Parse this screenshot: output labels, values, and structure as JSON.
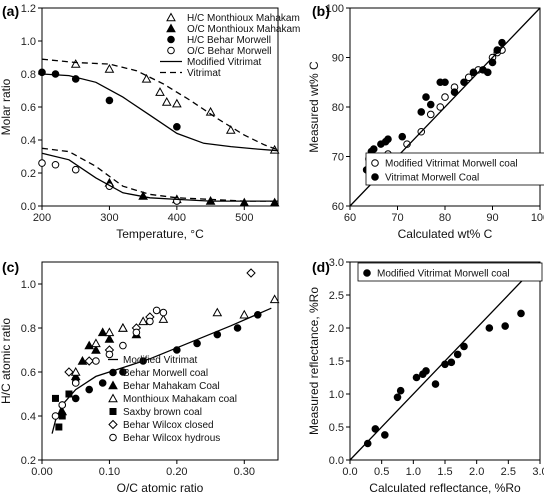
{
  "chart_data": [
    {
      "panel": "(a)",
      "type": "scatter",
      "xlabel": "Temperature, °C",
      "ylabel": "Molar ratio",
      "xlim": [
        200,
        550
      ],
      "ylim": [
        0,
        1.2
      ],
      "xticks": [
        "200",
        "300",
        "400",
        "500"
      ],
      "xtick_values": [
        200,
        300,
        400,
        500
      ],
      "yticks": [
        "0.0",
        "0.2",
        "0.4",
        "0.6",
        "0.8",
        "1.0",
        "1.2"
      ],
      "ytick_values": [
        0,
        0.2,
        0.4,
        0.6,
        0.8,
        1.0,
        1.2
      ],
      "legend_position": "top-right",
      "series": [
        {
          "name": "H/C Monthioux Mahakam",
          "marker": "open-triangle",
          "points": [
            [
              250,
              0.86
            ],
            [
              300,
              0.83
            ],
            [
              355,
              0.77
            ],
            [
              375,
              0.69
            ],
            [
              385,
              0.63
            ],
            [
              400,
              0.62
            ],
            [
              450,
              0.57
            ],
            [
              480,
              0.46
            ],
            [
              545,
              0.34
            ]
          ]
        },
        {
          "name": "O/C Monthioux Mahakam",
          "marker": "filled-triangle",
          "points": [
            [
              300,
              0.14
            ],
            [
              350,
              0.06
            ],
            [
              400,
              0.04
            ],
            [
              450,
              0.03
            ],
            [
              500,
              0.02
            ],
            [
              545,
              0.02
            ]
          ]
        },
        {
          "name": "H/C Behar Morwell",
          "marker": "filled-circle",
          "points": [
            [
              200,
              0.81
            ],
            [
              220,
              0.8
            ],
            [
              250,
              0.77
            ],
            [
              300,
              0.64
            ],
            [
              400,
              0.48
            ]
          ]
        },
        {
          "name": "O/C Behar Morwell",
          "marker": "open-circle",
          "points": [
            [
              200,
              0.26
            ],
            [
              220,
              0.25
            ],
            [
              250,
              0.22
            ],
            [
              300,
              0.12
            ],
            [
              400,
              0.03
            ]
          ]
        },
        {
          "name": "Modified Vitrimat",
          "line": "solid",
          "curves": [
            [
              [
                200,
                0.8
              ],
              [
                240,
                0.79
              ],
              [
                280,
                0.75
              ],
              [
                320,
                0.66
              ],
              [
                360,
                0.55
              ],
              [
                400,
                0.44
              ],
              [
                440,
                0.38
              ],
              [
                480,
                0.36
              ],
              [
                520,
                0.345
              ],
              [
                550,
                0.335
              ]
            ],
            [
              [
                200,
                0.32
              ],
              [
                240,
                0.28
              ],
              [
                280,
                0.17
              ],
              [
                320,
                0.08
              ],
              [
                360,
                0.05
              ],
              [
                400,
                0.04
              ],
              [
                450,
                0.03
              ],
              [
                500,
                0.03
              ],
              [
                550,
                0.03
              ]
            ]
          ]
        },
        {
          "name": "Vitrimat",
          "line": "dashed",
          "curves": [
            [
              [
                200,
                0.89
              ],
              [
                250,
                0.87
              ],
              [
                300,
                0.86
              ],
              [
                340,
                0.82
              ],
              [
                380,
                0.74
              ],
              [
                420,
                0.64
              ],
              [
                460,
                0.53
              ],
              [
                500,
                0.43
              ],
              [
                530,
                0.37
              ],
              [
                550,
                0.34
              ]
            ],
            [
              [
                200,
                0.35
              ],
              [
                240,
                0.33
              ],
              [
                280,
                0.24
              ],
              [
                320,
                0.12
              ],
              [
                360,
                0.07
              ],
              [
                400,
                0.05
              ],
              [
                450,
                0.04
              ],
              [
                500,
                0.03
              ],
              [
                550,
                0.03
              ]
            ]
          ]
        }
      ]
    },
    {
      "panel": "(b)",
      "type": "scatter",
      "xlabel": "Calculated wt% C",
      "ylabel": "Measured wt% C",
      "xlim": [
        60,
        100
      ],
      "ylim": [
        60,
        100
      ],
      "xticks": [
        "60",
        "70",
        "80",
        "90",
        "100"
      ],
      "xtick_values": [
        60,
        70,
        80,
        90,
        100
      ],
      "yticks": [
        "60",
        "70",
        "80",
        "90",
        "100"
      ],
      "ytick_values": [
        60,
        70,
        80,
        90,
        100
      ],
      "legend_position": "bottom-right",
      "series": [
        {
          "name": "Modified Vitrimat Morwell coal",
          "marker": "open-circle",
          "points": [
            [
              64,
              67.5
            ],
            [
              64.5,
              68.5
            ],
            [
              66,
              70
            ],
            [
              68,
              70.5
            ],
            [
              72,
              72.5
            ],
            [
              75,
              75
            ],
            [
              77,
              78.5
            ],
            [
              79,
              80
            ],
            [
              80,
              82
            ],
            [
              82,
              84
            ],
            [
              85,
              86
            ],
            [
              87,
              87.5
            ],
            [
              90,
              90
            ],
            [
              91,
              91
            ],
            [
              92,
              91.5
            ]
          ]
        },
        {
          "name": "Vitrimat Morwell Coal",
          "marker": "filled-circle",
          "points": [
            [
              63.5,
              67.3
            ],
            [
              64,
              69.5
            ],
            [
              64.5,
              71
            ],
            [
              65,
              71.5
            ],
            [
              66.5,
              72.5
            ],
            [
              67.5,
              73
            ],
            [
              68,
              73.5
            ],
            [
              71,
              74
            ],
            [
              75,
              79
            ],
            [
              76,
              82
            ],
            [
              77,
              80.5
            ],
            [
              79,
              85
            ],
            [
              80,
              85
            ],
            [
              82,
              83
            ],
            [
              84,
              85
            ],
            [
              86,
              87
            ],
            [
              88,
              87.5
            ],
            [
              89,
              87
            ],
            [
              90,
              89
            ],
            [
              91,
              91.5
            ],
            [
              92,
              93
            ]
          ]
        },
        {
          "name": "1:1",
          "line": "solid",
          "points": [
            [
              60,
              60
            ],
            [
              100,
              100
            ]
          ]
        }
      ]
    },
    {
      "panel": "(c)",
      "type": "scatter",
      "xlabel": "O/C atomic ratio",
      "ylabel": "H/C atomic ratio",
      "xlim": [
        0,
        0.35
      ],
      "ylim": [
        0.2,
        1.1
      ],
      "xticks": [
        "0.00",
        "0.10",
        "0.20",
        "0.30"
      ],
      "xtick_values": [
        0,
        0.1,
        0.2,
        0.3
      ],
      "yticks": [
        "0.2",
        "0.4",
        "0.6",
        "0.8",
        "1.0"
      ],
      "ytick_values": [
        0.2,
        0.4,
        0.6,
        0.8,
        1.0
      ],
      "legend_position": "bottom-right",
      "series": [
        {
          "name": "Modified Vitrimat",
          "line": "solid",
          "points": [
            [
              0.015,
              0.32
            ],
            [
              0.02,
              0.38
            ],
            [
              0.03,
              0.45
            ],
            [
              0.05,
              0.52
            ],
            [
              0.08,
              0.58
            ],
            [
              0.12,
              0.62
            ],
            [
              0.16,
              0.66
            ],
            [
              0.2,
              0.71
            ],
            [
              0.24,
              0.76
            ],
            [
              0.28,
              0.81
            ],
            [
              0.31,
              0.85
            ],
            [
              0.34,
              0.89
            ]
          ]
        },
        {
          "name": "Behar Morwell coal",
          "marker": "filled-circle",
          "points": [
            [
              0.03,
              0.45
            ],
            [
              0.05,
              0.48
            ],
            [
              0.07,
              0.52
            ],
            [
              0.09,
              0.55
            ],
            [
              0.12,
              0.6
            ],
            [
              0.15,
              0.65
            ],
            [
              0.2,
              0.7
            ],
            [
              0.23,
              0.73
            ],
            [
              0.26,
              0.77
            ],
            [
              0.29,
              0.8
            ],
            [
              0.32,
              0.86
            ]
          ]
        },
        {
          "name": "Behar Mahakam Coal",
          "marker": "filled-triangle",
          "points": [
            [
              0.03,
              0.42
            ],
            [
              0.05,
              0.58
            ],
            [
              0.06,
              0.65
            ],
            [
              0.07,
              0.72
            ],
            [
              0.08,
              0.7
            ],
            [
              0.09,
              0.78
            ],
            [
              0.1,
              0.75
            ],
            [
              0.12,
              0.8
            ],
            [
              0.14,
              0.77
            ]
          ]
        },
        {
          "name": "Monthioux Mahakam coal",
          "marker": "open-triangle",
          "points": [
            [
              0.05,
              0.6
            ],
            [
              0.08,
              0.73
            ],
            [
              0.1,
              0.78
            ],
            [
              0.12,
              0.8
            ],
            [
              0.15,
              0.83
            ],
            [
              0.18,
              0.84
            ],
            [
              0.26,
              0.87
            ],
            [
              0.3,
              0.86
            ],
            [
              0.345,
              0.93
            ]
          ]
        },
        {
          "name": "Saxby brown coal",
          "marker": "filled-square",
          "points": [
            [
              0.02,
              0.48
            ],
            [
              0.025,
              0.35
            ],
            [
              0.03,
              0.4
            ],
            [
              0.04,
              0.5
            ],
            [
              0.05,
              0.56
            ]
          ]
        },
        {
          "name": "Behar Wilcox closed",
          "marker": "open-diamond",
          "points": [
            [
              0.04,
              0.6
            ],
            [
              0.07,
              0.65
            ],
            [
              0.1,
              0.7
            ],
            [
              0.14,
              0.8
            ],
            [
              0.16,
              0.85
            ],
            [
              0.31,
              1.05
            ]
          ]
        },
        {
          "name": "Behar Wilcox hydrous",
          "marker": "open-circle",
          "points": [
            [
              0.02,
              0.4
            ],
            [
              0.03,
              0.45
            ],
            [
              0.05,
              0.55
            ],
            [
              0.08,
              0.65
            ],
            [
              0.1,
              0.68
            ],
            [
              0.12,
              0.72
            ],
            [
              0.14,
              0.78
            ],
            [
              0.16,
              0.83
            ],
            [
              0.17,
              0.88
            ],
            [
              0.18,
              0.87
            ]
          ]
        }
      ]
    },
    {
      "panel": "(d)",
      "type": "scatter",
      "xlabel": "Calculated reflectance, %Ro",
      "ylabel": "Measured reflectance, %Ro",
      "xlim": [
        0,
        3.0
      ],
      "ylim": [
        0,
        3.0
      ],
      "xticks": [
        "0.0",
        "0.5",
        "1.0",
        "1.5",
        "2.0",
        "2.5",
        "3.0"
      ],
      "xtick_values": [
        0,
        0.5,
        1.0,
        1.5,
        2.0,
        2.5,
        3.0
      ],
      "yticks": [
        "0.0",
        "0.5",
        "1.0",
        "1.5",
        "2.0",
        "2.5",
        "3.0"
      ],
      "ytick_values": [
        0,
        0.5,
        1.0,
        1.5,
        2.0,
        2.5,
        3.0
      ],
      "legend_position": "top-left",
      "series": [
        {
          "name": "Modified Vitrimat Morwell coal",
          "marker": "filled-circle",
          "points": [
            [
              0.28,
              0.25
            ],
            [
              0.4,
              0.47
            ],
            [
              0.55,
              0.38
            ],
            [
              0.75,
              0.95
            ],
            [
              0.8,
              1.05
            ],
            [
              1.05,
              1.25
            ],
            [
              1.15,
              1.3
            ],
            [
              1.2,
              1.35
            ],
            [
              1.35,
              1.15
            ],
            [
              1.5,
              1.45
            ],
            [
              1.6,
              1.48
            ],
            [
              1.7,
              1.6
            ],
            [
              1.8,
              1.72
            ],
            [
              2.2,
              2.0
            ],
            [
              2.45,
              2.03
            ],
            [
              2.7,
              2.22
            ]
          ]
        },
        {
          "name": "1:1",
          "line": "solid",
          "points": [
            [
              0,
              0
            ],
            [
              3,
              3
            ]
          ]
        }
      ]
    }
  ]
}
